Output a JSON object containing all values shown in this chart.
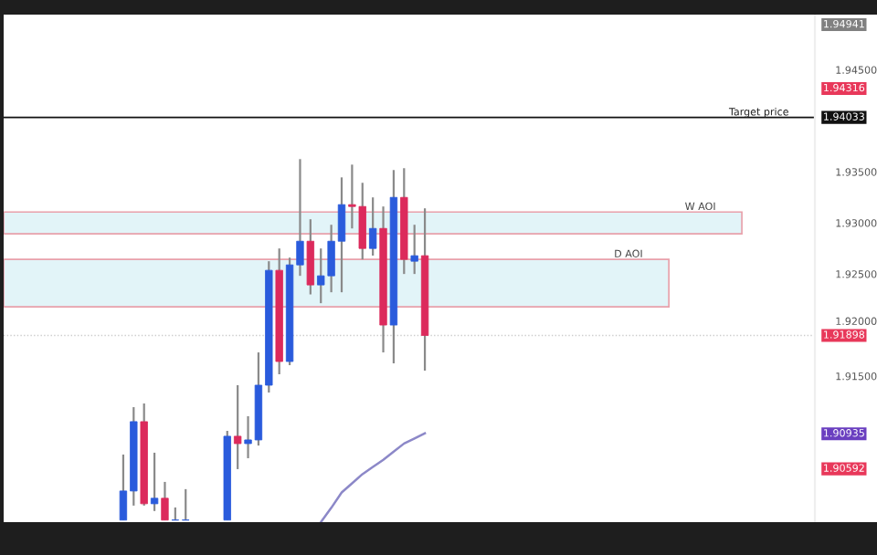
{
  "chart_data": {
    "type": "candlestick",
    "categories": [
      null,
      null,
      null,
      null,
      null,
      null,
      null,
      null,
      null,
      null,
      null,
      null,
      null,
      null,
      null,
      null,
      null,
      null,
      null,
      null,
      null,
      null,
      null,
      null,
      null,
      null,
      null,
      null,
      null,
      null,
      null,
      null,
      null,
      null,
      null,
      null,
      null,
      null,
      null,
      null,
      null,
      null,
      null,
      null,
      null,
      null,
      null,
      null,
      null,
      null,
      null,
      null,
      null,
      null,
      null,
      null,
      null,
      null,
      null,
      null,
      null,
      null,
      null,
      null,
      null,
      null,
      null,
      null,
      null,
      null,
      null,
      null,
      null,
      null,
      null,
      null,
      null,
      null
    ],
    "ohlc": [
      null,
      null,
      null,
      null,
      null,
      null,
      null,
      null,
      null,
      null,
      null,
      [
        1.9009,
        1.90732,
        1.9009,
        1.90375
      ],
      [
        1.90375,
        1.91196,
        1.90232,
        1.91054
      ],
      [
        1.91054,
        1.91232,
        1.90232,
        1.9025
      ],
      [
        1.9025,
        1.9075,
        1.90179,
        1.90304
      ],
      [
        1.90304,
        1.90464,
        1.9009,
        1.9009
      ],
      [
        1.9009,
        1.90214,
        1.9009,
        1.9009
      ],
      [
        1.9009,
        1.90393,
        1.9009,
        1.9009
      ],
      null,
      null,
      null,
      [
        1.9009,
        1.90964,
        1.9009,
        1.90911
      ],
      [
        1.90911,
        1.91411,
        1.90589,
        1.90839
      ],
      [
        1.90839,
        1.91107,
        1.90696,
        1.90875
      ],
      [
        1.90875,
        1.91732,
        1.9082,
        1.91411
      ],
      [
        1.91411,
        1.92625,
        1.91339,
        1.92536
      ],
      [
        1.92536,
        1.9275,
        1.91518,
        1.91643
      ],
      [
        1.91643,
        1.9266,
        1.91607,
        1.92589
      ],
      [
        1.92589,
        1.93625,
        1.92482,
        1.92821
      ],
      [
        1.92821,
        1.93036,
        1.923,
        1.92393
      ],
      [
        1.92393,
        1.9275,
        1.92214,
        1.92482
      ],
      [
        1.92482,
        1.92982,
        1.92321,
        1.92821
      ],
      [
        1.92821,
        1.93446,
        1.92321,
        1.93179
      ],
      [
        1.93179,
        1.93571,
        1.92946,
        1.93161
      ],
      [
        1.93161,
        1.93393,
        1.92643,
        1.9275
      ],
      [
        1.9275,
        1.9325,
        1.9268,
        1.92946
      ],
      [
        1.92946,
        1.93161,
        1.91732,
        1.92
      ],
      [
        1.92,
        1.93518,
        1.91625,
        1.9325
      ],
      [
        1.9325,
        1.93536,
        1.925,
        1.92643
      ],
      [
        1.92625,
        1.92982,
        1.925,
        1.92679
      ],
      [
        1.92679,
        1.93143,
        1.91554,
        1.91898
      ],
      null,
      null,
      null,
      null,
      null,
      null,
      null,
      null,
      null,
      null,
      null,
      null,
      null,
      null,
      null,
      null,
      null,
      null,
      null,
      null,
      null,
      null,
      null,
      null,
      null,
      null,
      null,
      null,
      null,
      null,
      null,
      null,
      null,
      null,
      null,
      null,
      null
    ],
    "series": [
      {
        "type": "line",
        "color": "#8c88c8",
        "values": [
          null,
          null,
          null,
          null,
          null,
          null,
          null,
          null,
          null,
          null,
          null,
          null,
          null,
          null,
          null,
          null,
          null,
          null,
          null,
          null,
          null,
          null,
          null,
          null,
          null,
          null,
          null,
          null,
          null,
          null,
          1.9007,
          1.9021,
          1.9036,
          1.9045,
          1.9054,
          1.9061,
          1.9068,
          1.9076,
          1.9084,
          1.9089,
          1.9094,
          null,
          null,
          null,
          null,
          null,
          null,
          null,
          null,
          null,
          null,
          null,
          null,
          null,
          null,
          null,
          null,
          null,
          null,
          null,
          null,
          null,
          null,
          null,
          null,
          null,
          null,
          null,
          null,
          null,
          null,
          null,
          null,
          null,
          null,
          null,
          null,
          null
        ]
      }
    ],
    "colors": [
      null,
      null,
      null,
      null,
      null,
      null,
      null,
      null,
      null,
      null,
      null,
      "#2a5bdc",
      "#2a5bdc",
      "#dc2a5c",
      "#2a5bdc",
      "#dc2a5c",
      "#2a5bdc",
      "#2a5bdc",
      null,
      null,
      null,
      "#2a5bdc",
      "#dc2a5c",
      "#2a5bdc",
      "#2a5bdc",
      "#2a5bdc",
      "#dc2a5c",
      "#2a5bdc",
      "#2a5bdc",
      "#dc2a5c",
      "#2a5bdc",
      "#2a5bdc",
      "#2a5bdc",
      "#dc2a5c",
      "#dc2a5c",
      "#2a5bdc",
      "#dc2a5c",
      "#2a5bdc",
      "#dc2a5c",
      "#2a5bdc",
      "#dc2a5c",
      null,
      null,
      null,
      null,
      null,
      null,
      null,
      null,
      null,
      null,
      null,
      null,
      null,
      null,
      null,
      null,
      null,
      null,
      null,
      null,
      null,
      null,
      null,
      null,
      null,
      null,
      null,
      null,
      null,
      null,
      null,
      null,
      null,
      null,
      null,
      null,
      null
    ],
    "ylim": [
      1.9007,
      1.9504
    ],
    "yticks": [
      {
        "value": 1.945,
        "label": "1.94500"
      },
      {
        "value": 1.935,
        "label": "1.93500"
      },
      {
        "value": 1.93,
        "label": "1.93000"
      },
      {
        "value": 1.925,
        "label": "1.92500"
      },
      {
        "value": 1.92,
        "label": "1.92000"
      },
      {
        "value": 1.915,
        "label": "1.91500"
      }
    ],
    "tick_labels": "y",
    "legend": false,
    "bands": [
      {
        "axis": "y",
        "from": 1.92893,
        "to": 1.93107,
        "label": "W AOI",
        "color": "#e2f4f8"
      },
      {
        "axis": "y",
        "from": 1.92179,
        "to": 1.92643,
        "label": "D AOI",
        "color": "#e2f4f8"
      }
    ],
    "ref_lines": [
      {
        "axis": "y",
        "value": 1.94033,
        "label": "Target price",
        "color": "#111111",
        "line_style": "solid"
      },
      {
        "axis": "y",
        "value": 1.91898,
        "color": "#cccccc",
        "line_style": "dotted"
      }
    ],
    "annotations": [
      "1.94941",
      "1.94316",
      "1.94033",
      "1.91898",
      "1.90935",
      "1.90592"
    ]
  }
}
